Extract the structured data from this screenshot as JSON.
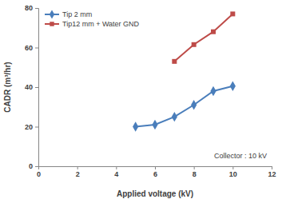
{
  "chart_data": {
    "type": "line",
    "x_label": "Applied voltage (kV)",
    "y_label": "CADR (m³/hr)",
    "annotation": "Collector : 10 kV",
    "xlim": [
      0,
      12
    ],
    "xticks": [
      0,
      2,
      4,
      6,
      8,
      10,
      12
    ],
    "ylim": [
      0,
      80
    ],
    "yticks": [
      0,
      20,
      40,
      60,
      80
    ],
    "grid": false,
    "legend": "upper left",
    "series": [
      {
        "name": "Tip 2 mm",
        "color": "#4a7ebb",
        "marker": "diamond",
        "line_style": "solid",
        "x": [
          5,
          6,
          7,
          8,
          9,
          10
        ],
        "values": [
          20,
          21,
          25,
          31,
          38,
          40.5
        ]
      },
      {
        "name": "Tip12 mm + Water GND",
        "color": "#be4b48",
        "marker": "square",
        "line_style": "solid",
        "x": [
          7,
          8,
          9,
          10
        ],
        "values": [
          53,
          61.5,
          68,
          77
        ]
      }
    ]
  }
}
